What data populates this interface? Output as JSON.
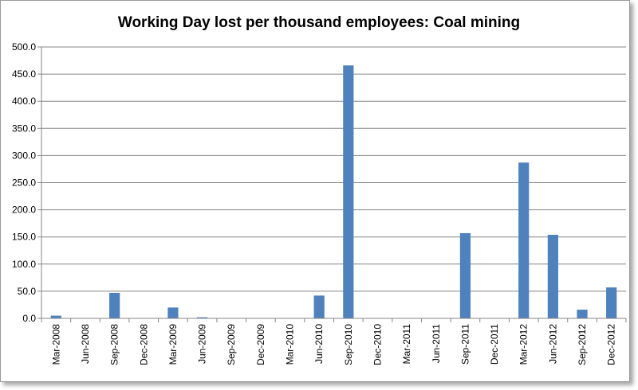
{
  "chart_data": {
    "type": "bar",
    "title": "Working Day lost per thousand employees: Coal mining",
    "xlabel": "",
    "ylabel": "",
    "ylim": [
      0,
      500
    ],
    "yticks": [
      "0.0",
      "50.0",
      "100.0",
      "150.0",
      "200.0",
      "250.0",
      "300.0",
      "350.0",
      "400.0",
      "450.0",
      "500.0"
    ],
    "grid": true,
    "legend": "none",
    "bar_color": "#4f81bd",
    "categories": [
      "Mar-2008",
      "Jun-2008",
      "Sep-2008",
      "Dec-2008",
      "Mar-2009",
      "Jun-2009",
      "Sep-2009",
      "Dec-2009",
      "Mar-2010",
      "Jun-2010",
      "Sep-2010",
      "Dec-2010",
      "Mar-2011",
      "Jun-2011",
      "Sep-2011",
      "Dec-2011",
      "Mar-2012",
      "Jun-2012",
      "Sep-2012",
      "Dec-2012"
    ],
    "values": [
      5,
      0,
      47,
      0,
      20,
      2,
      0,
      0,
      0,
      42,
      466,
      0,
      0,
      0,
      157,
      0,
      287,
      154,
      16,
      57
    ]
  }
}
